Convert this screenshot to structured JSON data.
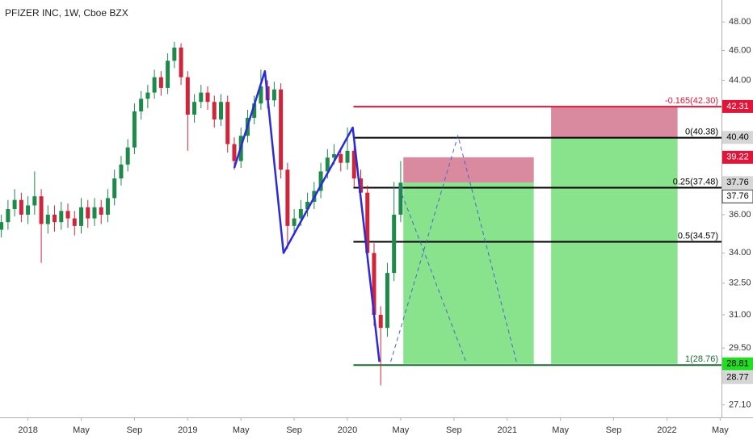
{
  "chart_data": {
    "type": "candlestick",
    "title": "PFIZER INC, 1W, Cboe BZX",
    "log": true,
    "xlim": [
      -2.1,
      52.1
    ],
    "ylim": [
      26.6,
      49.6
    ],
    "xticks": [
      {
        "value": 0,
        "label": "2018"
      },
      {
        "value": 4,
        "label": "May"
      },
      {
        "value": 8,
        "label": "Sep"
      },
      {
        "value": 12,
        "label": "2019"
      },
      {
        "value": 16,
        "label": "May"
      },
      {
        "value": 20,
        "label": "Sep"
      },
      {
        "value": 24,
        "label": "2020"
      },
      {
        "value": 28,
        "label": "May"
      },
      {
        "value": 32,
        "label": "Sep"
      },
      {
        "value": 36,
        "label": "2021"
      },
      {
        "value": 40,
        "label": "May"
      },
      {
        "value": 44,
        "label": "Sep"
      },
      {
        "value": 48,
        "label": "2022"
      },
      {
        "value": 52,
        "label": "May"
      }
    ],
    "yticks": [
      {
        "value": 48,
        "label": "48.00"
      },
      {
        "value": 46,
        "label": "46.00"
      },
      {
        "value": 44,
        "label": "44.00"
      },
      {
        "value": 36,
        "label": "36.00"
      },
      {
        "value": 34,
        "label": "34.00"
      },
      {
        "value": 32.5,
        "label": "32.50"
      },
      {
        "value": 31,
        "label": "31.00"
      },
      {
        "value": 29.5,
        "label": "29.50"
      },
      {
        "value": 27.1,
        "label": "27.10"
      }
    ],
    "up_color": "#1e8a4a",
    "down_color": "#d0243a",
    "candles": [
      [
        -2,
        35.2,
        36.0,
        34.8,
        35.6
      ],
      [
        -1.5,
        35.6,
        36.8,
        35.2,
        36.3
      ],
      [
        -1,
        36.3,
        37.4,
        35.9,
        36.8
      ],
      [
        -0.5,
        36.8,
        37.2,
        35.6,
        36.0
      ],
      [
        0,
        36.0,
        37.0,
        35.5,
        36.5
      ],
      [
        0.5,
        36.5,
        38.4,
        36.0,
        37.0
      ],
      [
        1,
        37.0,
        37.4,
        33.5,
        35.5
      ],
      [
        1.5,
        35.5,
        36.5,
        35.0,
        36.0
      ],
      [
        2,
        36.0,
        36.5,
        35.1,
        35.6
      ],
      [
        2.5,
        35.6,
        36.7,
        35.2,
        36.2
      ],
      [
        3,
        36.2,
        36.6,
        35.3,
        35.8
      ],
      [
        3.5,
        35.8,
        36.2,
        34.9,
        35.4
      ],
      [
        4,
        35.4,
        36.9,
        35.0,
        36.4
      ],
      [
        4.5,
        36.4,
        36.8,
        35.3,
        35.8
      ],
      [
        5,
        35.8,
        36.9,
        35.4,
        36.4
      ],
      [
        5.5,
        36.4,
        36.8,
        35.5,
        36.0
      ],
      [
        6,
        36.0,
        37.4,
        35.6,
        36.9
      ],
      [
        6.5,
        36.9,
        38.5,
        36.5,
        38.0
      ],
      [
        7,
        38.0,
        39.3,
        37.6,
        38.8
      ],
      [
        7.5,
        38.8,
        40.3,
        38.4,
        39.8
      ],
      [
        8,
        39.8,
        42.5,
        39.4,
        42.0
      ],
      [
        8.5,
        42.0,
        43.3,
        41.5,
        42.8
      ],
      [
        9,
        42.8,
        43.7,
        42.2,
        43.2
      ],
      [
        9.5,
        43.2,
        44.7,
        42.8,
        44.2
      ],
      [
        10,
        44.2,
        44.6,
        43.0,
        43.5
      ],
      [
        10.5,
        43.5,
        45.8,
        43.1,
        45.3
      ],
      [
        11,
        45.3,
        46.6,
        44.8,
        46.2
      ],
      [
        11.5,
        46.2,
        46.5,
        43.7,
        44.2
      ],
      [
        12,
        44.2,
        44.6,
        39.6,
        41.8
      ],
      [
        12.5,
        41.8,
        43.1,
        41.3,
        42.6
      ],
      [
        13,
        42.6,
        43.7,
        42.2,
        43.2
      ],
      [
        13.5,
        43.2,
        43.6,
        42.1,
        42.6
      ],
      [
        14,
        42.6,
        43.0,
        41.0,
        41.5
      ],
      [
        14.5,
        41.5,
        43.1,
        41.1,
        42.6
      ],
      [
        15,
        42.6,
        43.0,
        39.5,
        40.0
      ],
      [
        15.5,
        40.0,
        40.4,
        38.5,
        39.0
      ],
      [
        16,
        39.0,
        41.0,
        38.6,
        40.5
      ],
      [
        16.5,
        40.5,
        42.1,
        40.1,
        41.6
      ],
      [
        17,
        41.6,
        43.0,
        41.2,
        42.5
      ],
      [
        17.5,
        42.5,
        44.7,
        42.1,
        43.6
      ],
      [
        18,
        43.6,
        44.0,
        42.2,
        42.7
      ],
      [
        18.5,
        42.7,
        43.9,
        42.3,
        43.4
      ],
      [
        19,
        43.4,
        43.8,
        38.0,
        38.5
      ],
      [
        19.5,
        38.5,
        38.9,
        34.2,
        35.4
      ],
      [
        20,
        35.4,
        36.3,
        34.9,
        35.8
      ],
      [
        20.5,
        35.8,
        36.8,
        35.4,
        36.3
      ],
      [
        21,
        36.3,
        37.2,
        35.9,
        36.7
      ],
      [
        21.5,
        36.7,
        37.8,
        36.3,
        37.3
      ],
      [
        22,
        37.3,
        38.9,
        36.9,
        38.4
      ],
      [
        22.5,
        38.4,
        39.7,
        38.0,
        39.2
      ],
      [
        23,
        39.2,
        40.0,
        38.8,
        39.4
      ],
      [
        23.5,
        39.4,
        39.8,
        38.4,
        38.9
      ],
      [
        24,
        38.9,
        41.0,
        38.5,
        39.6
      ],
      [
        24.5,
        39.6,
        40.1,
        37.5,
        38.0
      ],
      [
        25,
        38.0,
        38.5,
        36.7,
        37.2
      ],
      [
        25.5,
        37.2,
        37.6,
        33.5,
        34.0
      ],
      [
        26,
        34.0,
        34.5,
        30.5,
        31.0
      ],
      [
        26.5,
        31.0,
        31.4,
        27.9,
        30.4
      ],
      [
        27,
        30.4,
        33.5,
        30.0,
        33.0
      ],
      [
        27.5,
        33.0,
        37.8,
        32.6,
        36.0
      ],
      [
        28,
        36.0,
        39.0,
        35.6,
        37.76
      ]
    ],
    "pattern": {
      "color": "#2b2bdc",
      "x": [
        15.5,
        17.8,
        19.2,
        24.4,
        26.4
      ],
      "values": [
        38.6,
        44.6,
        34.0,
        41.0,
        28.9
      ]
    },
    "projections": [
      {
        "color": "#4f63d2",
        "x": [
          27.25,
          32.3,
          36.7
        ],
        "values": [
          28.9,
          40.5,
          28.9
        ]
      },
      {
        "color": "#4f63d2",
        "x": [
          27.9,
          32.9
        ],
        "values": [
          37.5,
          28.9
        ]
      }
    ],
    "fib_start": 24.45,
    "fib_levels": [
      {
        "value": 42.3,
        "label": "-0.165(42.30)",
        "color": "#e0153a"
      },
      {
        "value": 40.38,
        "label": "0(40.38)",
        "color": "#000000"
      },
      {
        "value": 37.48,
        "label": "0.25(37.48)",
        "color": "#000000"
      },
      {
        "value": 34.57,
        "label": "0.5(34.57)",
        "color": "#000000"
      },
      {
        "value": 28.76,
        "label": "1(28.76)",
        "color": "#1b6b35"
      }
    ],
    "positions": [
      {
        "x": [
          28.2,
          38.0
        ],
        "entry": 37.76,
        "stop": 39.22,
        "target": 28.81
      },
      {
        "x": [
          39.3,
          48.8
        ],
        "entry": 40.4,
        "stop": 42.31,
        "target": 28.81
      }
    ],
    "stop_color": "#d98a9e",
    "target_color": "#88e38c",
    "price_labels": [
      {
        "value": 42.31,
        "label": "42.31",
        "bg": "#e0153a",
        "fg": "#ffffff"
      },
      {
        "value": 40.4,
        "label": "40.40",
        "bg": "#d6d6d6",
        "fg": "#000000"
      },
      {
        "value": 39.22,
        "label": "39.22",
        "bg": "#e0153a",
        "fg": "#ffffff"
      },
      {
        "value": 37.76,
        "label": "37.76",
        "bg": "#d6d6d6",
        "fg": "#000000"
      },
      {
        "value": 37.76,
        "label": "37.76",
        "bg": "#ffffff",
        "fg": "#000000"
      },
      {
        "value": 28.81,
        "label": "28.81",
        "bg": "#22dd22",
        "fg": "#000000"
      },
      {
        "value": 28.77,
        "label": "28.77",
        "bg": "#d6d6d6",
        "fg": "#000000"
      }
    ]
  }
}
